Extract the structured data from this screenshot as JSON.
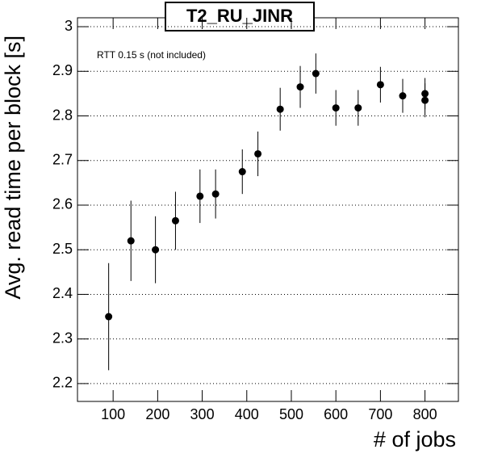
{
  "chart_data": {
    "type": "scatter",
    "title": "T2_RU_JINR",
    "annotation": "RTT 0.15 s (not included)",
    "x_label": "# of jobs",
    "y_label": "Avg. read time per block [s]",
    "color": "#000000",
    "x": [
      90,
      140,
      195,
      240,
      295,
      330,
      390,
      425,
      475,
      520,
      555,
      600,
      650,
      700,
      750,
      800,
      800
    ],
    "values": [
      2.35,
      2.52,
      2.5,
      2.565,
      2.62,
      2.625,
      2.675,
      2.715,
      2.815,
      2.865,
      2.895,
      2.818,
      2.818,
      2.87,
      2.845,
      2.85,
      2.835
    ],
    "errors": [
      0.12,
      0.09,
      0.075,
      0.065,
      0.06,
      0.055,
      0.05,
      0.05,
      0.048,
      0.047,
      0.045,
      0.04,
      0.04,
      0.04,
      0.038,
      0.035,
      0.038
    ],
    "xlim": [
      20,
      875
    ],
    "ylim": [
      2.16,
      3.02
    ],
    "xticks": [
      100,
      200,
      300,
      400,
      500,
      600,
      700,
      800
    ],
    "yticks": [
      2.2,
      2.3,
      2.4,
      2.5,
      2.6,
      2.7,
      2.8,
      2.9,
      3
    ],
    "grid": true
  }
}
